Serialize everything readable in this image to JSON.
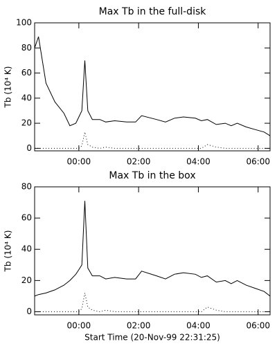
{
  "chart_data": [
    {
      "type": "line",
      "title": "Max Tb in the full-disk",
      "y_label": "Tb (10⁴ K)",
      "x": [
        -1.48,
        -1.35,
        -1.1,
        -0.8,
        -0.5,
        -0.3,
        -0.1,
        0.0,
        0.1,
        0.2,
        0.3,
        0.45,
        0.7,
        0.9,
        1.2,
        1.6,
        1.9,
        2.1,
        2.6,
        2.9,
        3.2,
        3.5,
        3.9,
        4.1,
        4.3,
        4.6,
        4.9,
        5.1,
        5.3,
        5.6,
        5.9,
        6.2,
        6.4
      ],
      "series": [
        {
          "color": "#000000",
          "style": "solid",
          "values": [
            80,
            89,
            52,
            37,
            28,
            18,
            20,
            25,
            30,
            70,
            30,
            23,
            23,
            21,
            22,
            21,
            21,
            26,
            23,
            21,
            24,
            25,
            24,
            22,
            23,
            19,
            20,
            18,
            20,
            17,
            15,
            13,
            10
          ]
        },
        {
          "color": "#000000",
          "style": "dotted",
          "values": [
            0,
            0,
            0,
            0,
            0,
            0,
            0,
            0,
            2,
            13,
            3,
            1,
            0,
            1,
            0,
            0,
            0,
            0,
            0,
            0,
            0,
            0,
            0,
            0,
            3,
            1,
            0,
            0,
            0,
            0,
            0,
            0,
            0
          ]
        }
      ],
      "xlim": [
        -1.48,
        6.4
      ],
      "xticks": [
        {
          "value": 0,
          "label": "00:00"
        },
        {
          "value": 2,
          "label": "02:00"
        },
        {
          "value": 4,
          "label": "04:00"
        },
        {
          "value": 6,
          "label": "06:00"
        }
      ],
      "ylim": [
        -2,
        100
      ],
      "yticks": [
        0,
        20,
        40,
        60,
        80,
        100
      ],
      "grid": false
    },
    {
      "type": "line",
      "title": "Max Tb in the box",
      "y_label": "Tb (10⁴ K)",
      "x_label": "Start Time (20-Nov-99 22:31:25)",
      "x": [
        -1.48,
        -1.35,
        -1.1,
        -0.8,
        -0.5,
        -0.3,
        -0.1,
        0.0,
        0.1,
        0.2,
        0.3,
        0.45,
        0.7,
        0.9,
        1.2,
        1.6,
        1.9,
        2.1,
        2.6,
        2.9,
        3.2,
        3.5,
        3.9,
        4.1,
        4.3,
        4.6,
        4.9,
        5.1,
        5.3,
        5.6,
        5.9,
        6.2,
        6.4
      ],
      "series": [
        {
          "color": "#000000",
          "style": "solid",
          "values": [
            10,
            11,
            12,
            14,
            17,
            20,
            24,
            27,
            30,
            71,
            28,
            23,
            23,
            21,
            22,
            21,
            21,
            26,
            23,
            21,
            24,
            25,
            24,
            22,
            23,
            19,
            20,
            18,
            20,
            17,
            15,
            13,
            10
          ]
        },
        {
          "color": "#000000",
          "style": "dotted",
          "values": [
            0,
            0,
            0,
            0,
            0,
            0,
            0,
            0,
            2,
            12,
            3,
            1,
            0,
            1,
            0,
            0,
            0,
            0,
            0,
            0,
            0,
            0,
            0,
            0,
            3,
            1,
            0,
            0,
            0,
            0,
            0,
            0,
            0
          ]
        }
      ],
      "xlim": [
        -1.48,
        6.4
      ],
      "xticks": [
        {
          "value": 0,
          "label": "00:00"
        },
        {
          "value": 2,
          "label": "02:00"
        },
        {
          "value": 4,
          "label": "04:00"
        },
        {
          "value": 6,
          "label": "06:00"
        }
      ],
      "ylim": [
        -2,
        80
      ],
      "yticks": [
        0,
        20,
        40,
        60,
        80
      ],
      "grid": false
    }
  ]
}
